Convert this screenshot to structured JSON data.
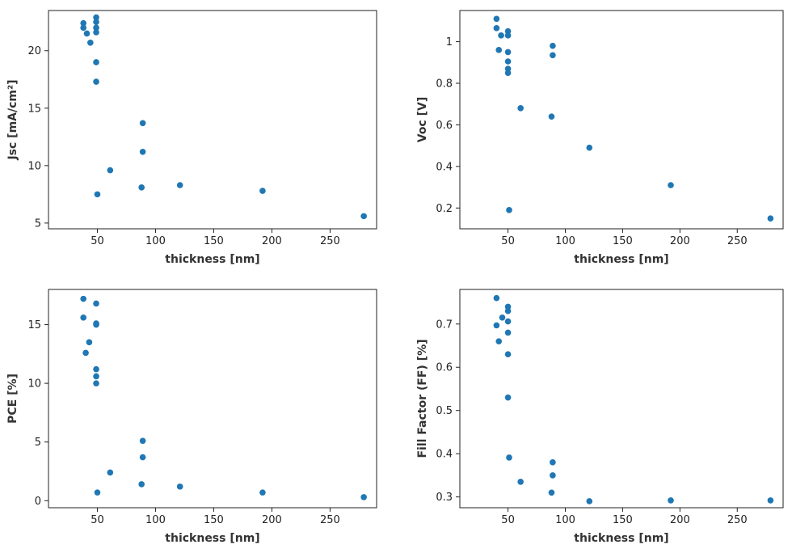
{
  "marker_color": "#1f77b4",
  "chart_data": [
    {
      "type": "scatter",
      "xlabel": "thickness [nm]",
      "ylabel": "Jsc [mA/cm²]",
      "xlim": [
        8,
        290
      ],
      "ylim": [
        4.5,
        23.5
      ],
      "xticks": [
        50,
        100,
        150,
        200,
        250
      ],
      "yticks": [
        5,
        10,
        15,
        20
      ],
      "grid": false,
      "points": [
        [
          38,
          22.4
        ],
        [
          38,
          22.0
        ],
        [
          41,
          21.5
        ],
        [
          44,
          20.7
        ],
        [
          49,
          22.9
        ],
        [
          49,
          22.5
        ],
        [
          49,
          22.0
        ],
        [
          49,
          21.6
        ],
        [
          49,
          19.0
        ],
        [
          49,
          17.3
        ],
        [
          50,
          7.5
        ],
        [
          61,
          9.6
        ],
        [
          89,
          13.7
        ],
        [
          89,
          11.2
        ],
        [
          88,
          8.1
        ],
        [
          121,
          8.3
        ],
        [
          192,
          7.8
        ],
        [
          279,
          5.6
        ]
      ]
    },
    {
      "type": "scatter",
      "xlabel": "thickness [nm]",
      "ylabel": "Voc [V]",
      "xlim": [
        8,
        290
      ],
      "ylim": [
        0.1,
        1.15
      ],
      "xticks": [
        50,
        100,
        150,
        200,
        250
      ],
      "yticks": [
        0.2,
        0.4,
        0.6,
        0.8,
        1
      ],
      "ytick_labels": [
        "0.2",
        "0.4",
        "0.6",
        "0.8",
        "1"
      ],
      "grid": false,
      "points": [
        [
          40,
          1.11
        ],
        [
          40,
          1.065
        ],
        [
          44,
          1.03
        ],
        [
          42,
          0.96
        ],
        [
          50,
          1.05
        ],
        [
          50,
          1.03
        ],
        [
          50,
          0.95
        ],
        [
          50,
          0.905
        ],
        [
          50,
          0.87
        ],
        [
          50,
          0.85
        ],
        [
          51,
          0.19
        ],
        [
          61,
          0.68
        ],
        [
          89,
          0.98
        ],
        [
          89,
          0.935
        ],
        [
          88,
          0.64
        ],
        [
          121,
          0.49
        ],
        [
          192,
          0.31
        ],
        [
          279,
          0.15
        ]
      ]
    },
    {
      "type": "scatter",
      "xlabel": "thickness [nm]",
      "ylabel": "PCE [%]",
      "xlim": [
        8,
        290
      ],
      "ylim": [
        -0.6,
        18.0
      ],
      "xticks": [
        50,
        100,
        150,
        200,
        250
      ],
      "yticks": [
        0,
        5,
        10,
        15
      ],
      "grid": false,
      "points": [
        [
          38,
          17.2
        ],
        [
          38,
          15.6
        ],
        [
          40,
          12.6
        ],
        [
          43,
          13.5
        ],
        [
          49,
          16.8
        ],
        [
          49,
          15.1
        ],
        [
          49,
          15.0
        ],
        [
          49,
          11.2
        ],
        [
          49,
          10.6
        ],
        [
          49,
          10.0
        ],
        [
          50,
          0.7
        ],
        [
          61,
          2.4
        ],
        [
          89,
          5.1
        ],
        [
          89,
          3.7
        ],
        [
          88,
          1.4
        ],
        [
          121,
          1.2
        ],
        [
          192,
          0.7
        ],
        [
          279,
          0.3
        ]
      ]
    },
    {
      "type": "scatter",
      "xlabel": "thickness [nm]",
      "ylabel": "Fill Factor (FF) [%]",
      "xlim": [
        8,
        290
      ],
      "ylim": [
        0.275,
        0.78
      ],
      "xticks": [
        50,
        100,
        150,
        200,
        250
      ],
      "yticks": [
        0.3,
        0.4,
        0.5,
        0.6,
        0.7
      ],
      "grid": false,
      "points": [
        [
          40,
          0.76
        ],
        [
          40,
          0.697
        ],
        [
          45,
          0.715
        ],
        [
          42,
          0.66
        ],
        [
          50,
          0.74
        ],
        [
          50,
          0.73
        ],
        [
          50,
          0.706
        ],
        [
          50,
          0.68
        ],
        [
          50,
          0.63
        ],
        [
          50,
          0.53
        ],
        [
          51,
          0.391
        ],
        [
          61,
          0.335
        ],
        [
          89,
          0.38
        ],
        [
          89,
          0.35
        ],
        [
          88,
          0.31
        ],
        [
          121,
          0.29
        ],
        [
          192,
          0.292
        ],
        [
          279,
          0.292
        ]
      ]
    }
  ]
}
